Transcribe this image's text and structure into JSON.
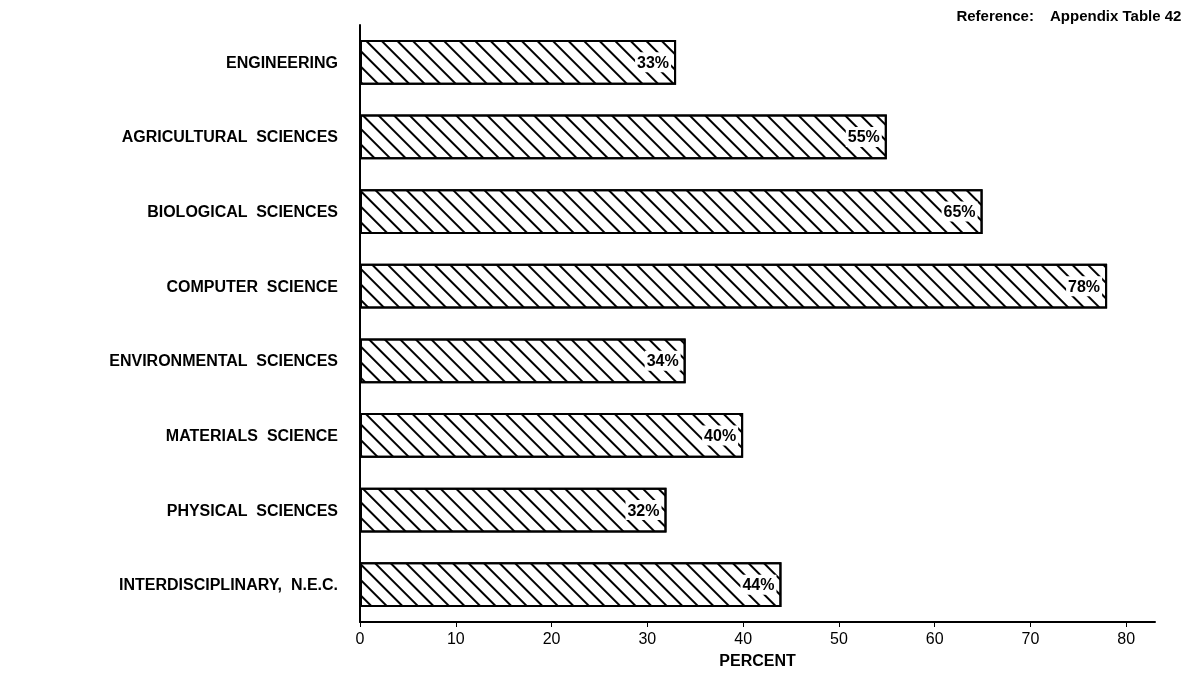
{
  "chart_data": {
    "type": "bar",
    "orientation": "horizontal",
    "categories": [
      "ENGINEERING",
      "AGRICULTURAL  SCIENCES",
      "BIOLOGICAL  SCIENCES",
      "COMPUTER  SCIENCE",
      "ENVIRONMENTAL  SCIENCES",
      "MATERIALS  SCIENCE",
      "PHYSICAL  SCIENCES",
      "INTERDISCIPLINARY,  N.E.C."
    ],
    "values": [
      33,
      55,
      65,
      78,
      34,
      40,
      32,
      44
    ],
    "color": "#ffffff",
    "value_labels": [
      "33%",
      "55%",
      "65%",
      "78%",
      "34%",
      "40%",
      "32%",
      "44%"
    ],
    "xlabel": "PERCENT",
    "xlim": [
      0,
      83
    ],
    "xticks": [
      0,
      10,
      20,
      30,
      40,
      50,
      60,
      70,
      80
    ],
    "grid": false,
    "annotations": [
      "Reference:    Appendix Table 42"
    ]
  }
}
